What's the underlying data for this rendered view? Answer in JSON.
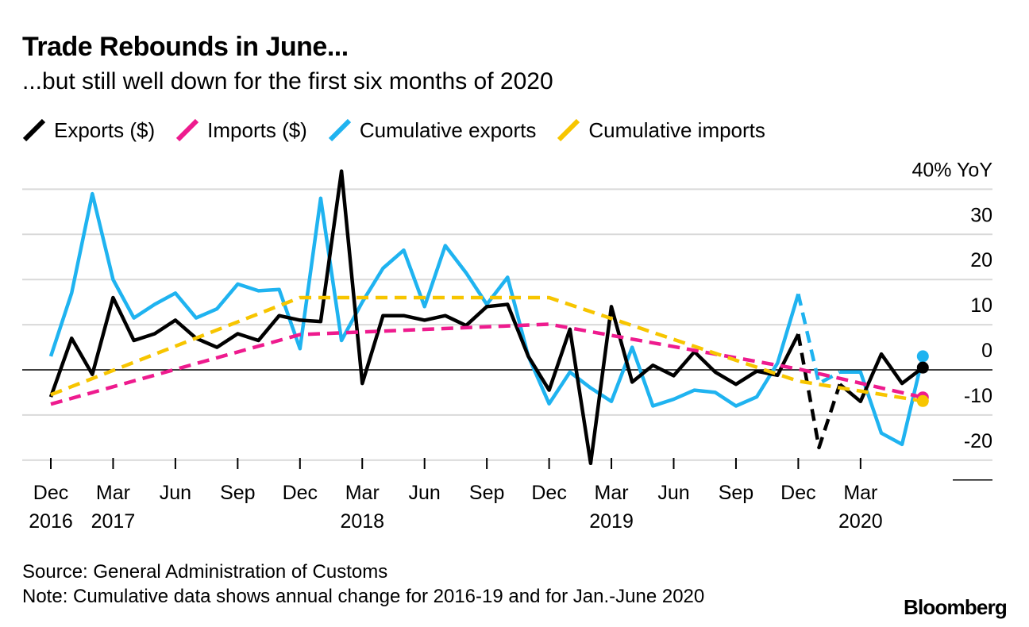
{
  "title": "Trade Rebounds in June...",
  "subtitle": "...but still well down for the first six months of 2020",
  "source": "Source: General Administration of Customs",
  "note": "Note: Cumulative data shows annual change for 2016-19 and for Jan.-June 2020",
  "brand": "Bloomberg",
  "legend": [
    {
      "label": "Exports ($)",
      "color": "#000000"
    },
    {
      "label": "Imports ($)",
      "color": "#ee1b8e"
    },
    {
      "label": "Cumulative exports",
      "color": "#1fb3f0"
    },
    {
      "label": "Cumulative imports",
      "color": "#f7c500"
    }
  ],
  "chart_data": {
    "type": "line",
    "title": "Trade Rebounds in June...",
    "subtitle": "...but still well down for the first six months of 2020",
    "ylabel": "40% YoY",
    "ylim": [
      -21,
      44
    ],
    "yticks": [
      -20,
      -10,
      0,
      10,
      20,
      30,
      40
    ],
    "ytick_labels": [
      "-20",
      "-10",
      "0",
      "10",
      "20",
      "30",
      "40% YoY"
    ],
    "grid": true,
    "legend_position": "top-left",
    "x_start": "Dec 2016",
    "x_unit": "month index (0 = Dec 2016, 42 = Jun 2020)",
    "xticks": [
      {
        "i": 0,
        "label": "Dec",
        "year": "2016"
      },
      {
        "i": 3,
        "label": "Mar",
        "year": "2017"
      },
      {
        "i": 6,
        "label": "Jun",
        "year": ""
      },
      {
        "i": 9,
        "label": "Sep",
        "year": ""
      },
      {
        "i": 12,
        "label": "Dec",
        "year": ""
      },
      {
        "i": 15,
        "label": "Mar",
        "year": "2018"
      },
      {
        "i": 18,
        "label": "Jun",
        "year": ""
      },
      {
        "i": 21,
        "label": "Sep",
        "year": ""
      },
      {
        "i": 24,
        "label": "Dec",
        "year": ""
      },
      {
        "i": 27,
        "label": "Mar",
        "year": "2019"
      },
      {
        "i": 30,
        "label": "Jun",
        "year": ""
      },
      {
        "i": 33,
        "label": "Sep",
        "year": ""
      },
      {
        "i": 36,
        "label": "Dec",
        "year": ""
      },
      {
        "i": 39,
        "label": "Mar",
        "year": "2020"
      }
    ],
    "series": [
      {
        "name": "Exports ($)",
        "color": "#000000",
        "dash_between": [
          36,
          38
        ],
        "end_marker": true,
        "points": [
          [
            0,
            -6
          ],
          [
            1,
            7
          ],
          [
            2,
            -1
          ],
          [
            3,
            16
          ],
          [
            4,
            6.5
          ],
          [
            5,
            8
          ],
          [
            6,
            11
          ],
          [
            7,
            7
          ],
          [
            8,
            5
          ],
          [
            9,
            8
          ],
          [
            10,
            6.5
          ],
          [
            11,
            12
          ],
          [
            12,
            11
          ],
          [
            13,
            10.7
          ],
          [
            14,
            44
          ],
          [
            15,
            -3
          ],
          [
            16,
            12
          ],
          [
            17,
            12
          ],
          [
            18,
            11
          ],
          [
            19,
            12
          ],
          [
            20,
            9.8
          ],
          [
            21,
            14
          ],
          [
            22,
            14.5
          ],
          [
            23,
            3
          ],
          [
            24,
            -4.5
          ],
          [
            25,
            9
          ],
          [
            26,
            -20.7
          ],
          [
            27,
            14
          ],
          [
            28,
            -2.7
          ],
          [
            29,
            1
          ],
          [
            30,
            -1.3
          ],
          [
            31,
            4
          ],
          [
            32,
            -0.5
          ],
          [
            33,
            -3.2
          ],
          [
            34,
            -0.3
          ],
          [
            35,
            -1.2
          ],
          [
            36,
            7.9
          ],
          [
            37,
            -17.2
          ],
          [
            38,
            -3.2
          ],
          [
            39,
            -7
          ],
          [
            40,
            3.5
          ],
          [
            41,
            -3
          ],
          [
            42,
            0.5
          ]
        ]
      },
      {
        "name": "Imports ($)",
        "color": "#ee1b8e",
        "dashed": true,
        "end_marker": true,
        "points": [
          [
            0,
            -7.6
          ],
          [
            12,
            7.8
          ],
          [
            24,
            10.1
          ],
          [
            36,
            0.2
          ],
          [
            42,
            -6.1
          ]
        ]
      },
      {
        "name": "Cumulative exports",
        "color": "#1fb3f0",
        "dash_between": [
          36,
          38
        ],
        "end_marker": true,
        "points": [
          [
            0,
            3
          ],
          [
            1,
            17
          ],
          [
            2,
            39
          ],
          [
            3,
            20
          ],
          [
            4,
            11.5
          ],
          [
            5,
            14.5
          ],
          [
            6,
            17
          ],
          [
            7,
            11.5
          ],
          [
            8,
            13.5
          ],
          [
            9,
            19
          ],
          [
            10,
            17.5
          ],
          [
            11,
            17.8
          ],
          [
            12,
            4.7
          ],
          [
            13,
            38
          ],
          [
            14,
            6.5
          ],
          [
            15,
            15
          ],
          [
            16,
            22.5
          ],
          [
            17,
            26.5
          ],
          [
            18,
            14
          ],
          [
            19,
            27.5
          ],
          [
            20,
            21.5
          ],
          [
            21,
            14.5
          ],
          [
            22,
            20.5
          ],
          [
            23,
            3
          ],
          [
            24,
            -7.5
          ],
          [
            25,
            -0.5
          ],
          [
            26,
            -4
          ],
          [
            27,
            -7
          ],
          [
            28,
            5
          ],
          [
            29,
            -8
          ],
          [
            30,
            -6.5
          ],
          [
            31,
            -4.5
          ],
          [
            32,
            -5
          ],
          [
            33,
            -8
          ],
          [
            34,
            -6
          ],
          [
            35,
            1.5
          ],
          [
            36,
            16.8
          ],
          [
            37,
            -3
          ],
          [
            38,
            -0.5
          ],
          [
            39,
            -0.5
          ],
          [
            40,
            -14
          ],
          [
            41,
            -16.5
          ],
          [
            42,
            3
          ]
        ]
      },
      {
        "name": "Cumulative imports",
        "color": "#f7c500",
        "dashed": true,
        "end_marker": true,
        "points": [
          [
            0,
            -5.5
          ],
          [
            12,
            16
          ],
          [
            24,
            16
          ],
          [
            36,
            -2.5
          ],
          [
            42,
            -6.9
          ]
        ]
      }
    ]
  }
}
